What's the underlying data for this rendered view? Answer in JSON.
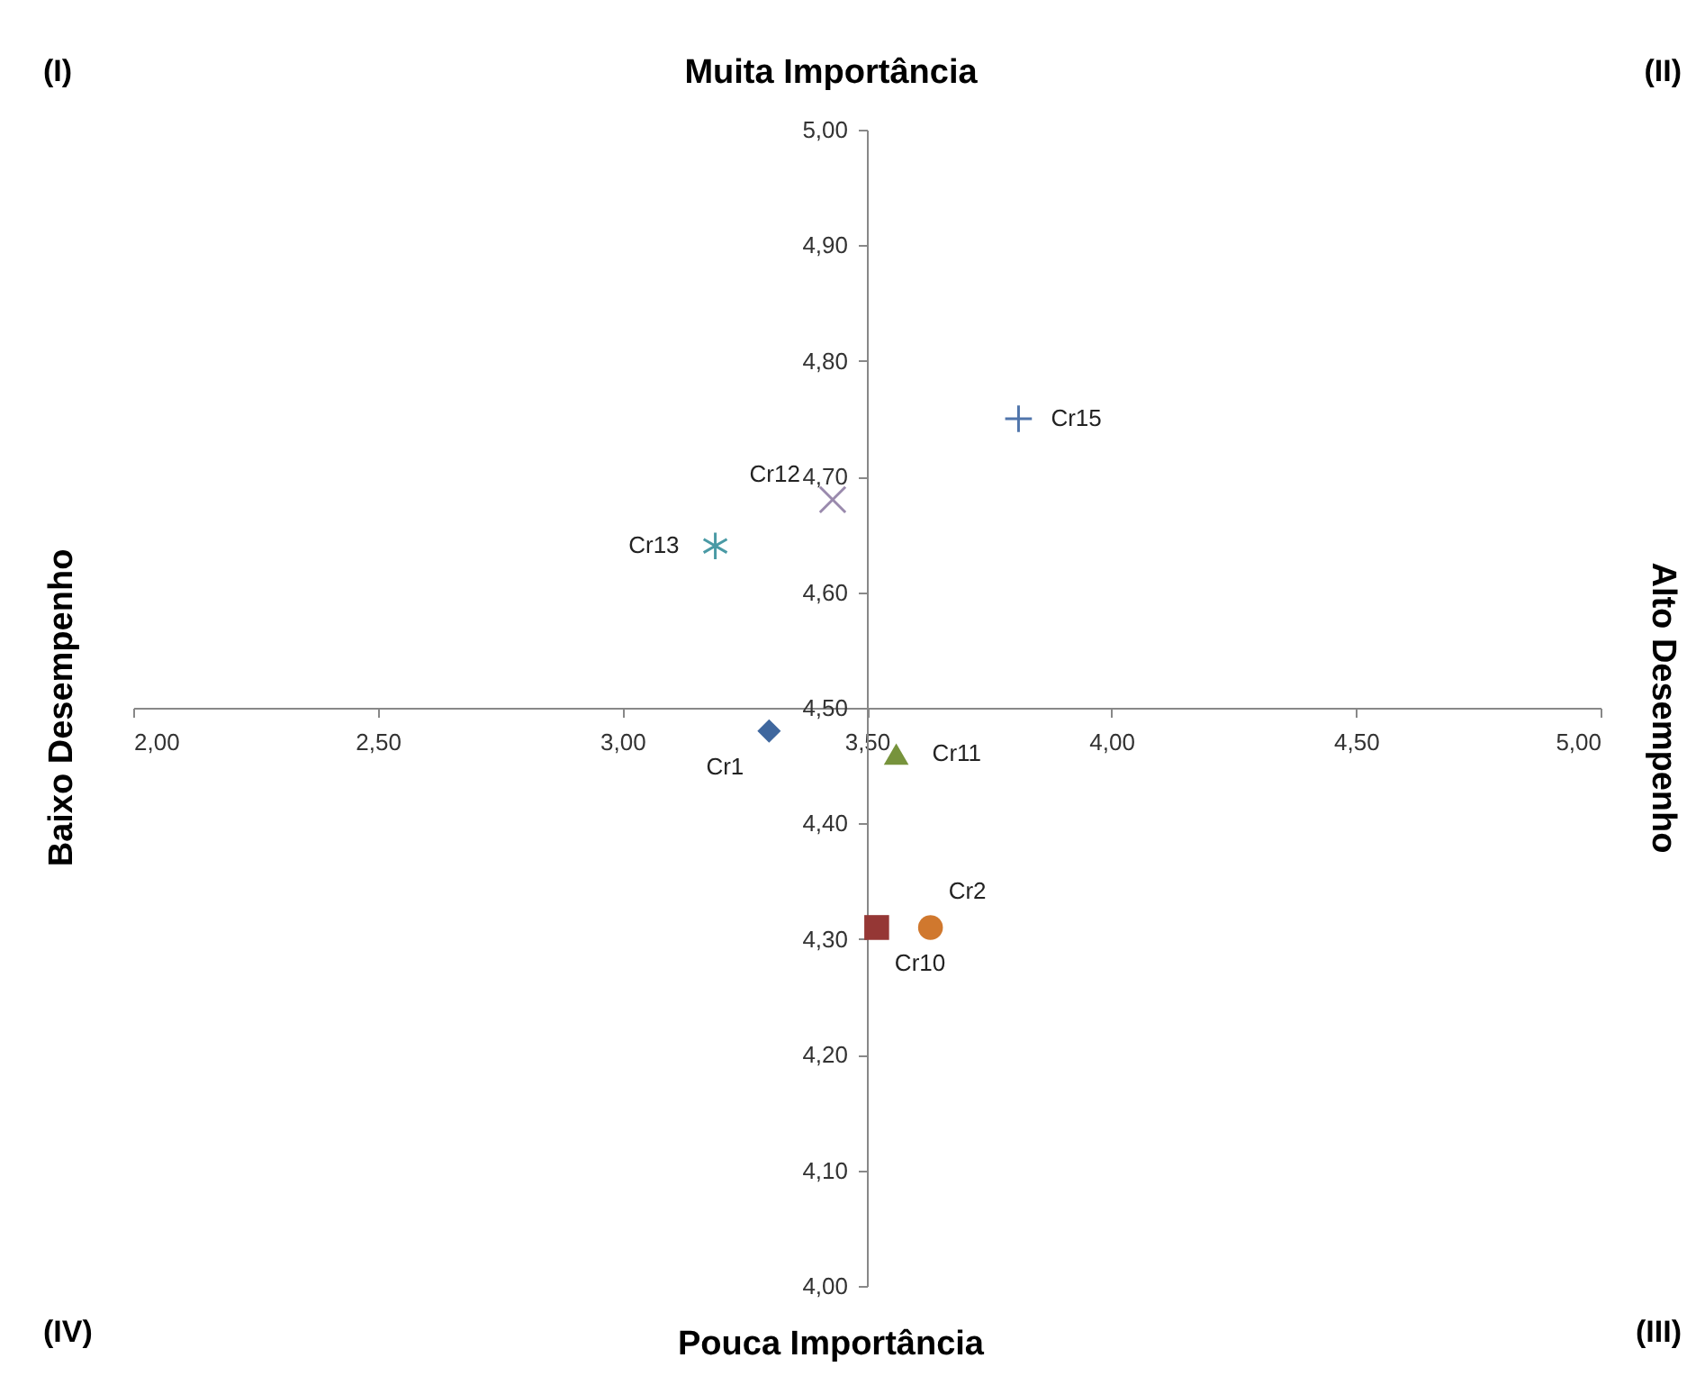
{
  "chart_data": {
    "type": "scatter",
    "annotations": [
      "(I)",
      "Muita Importância",
      "(II)",
      "Baixo Desempenho",
      "Alto Desempenho",
      "(IV)",
      "Pouca Importância",
      "(III)"
    ],
    "xlim": [
      2.0,
      5.0
    ],
    "xticks": [
      {
        "value": 2.0,
        "label": "2,00"
      },
      {
        "value": 2.5,
        "label": "2,50"
      },
      {
        "value": 3.0,
        "label": "3,00"
      },
      {
        "value": 3.5,
        "label": "3,50"
      },
      {
        "value": 4.0,
        "label": "4,00"
      },
      {
        "value": 4.5,
        "label": "4,50"
      },
      {
        "value": 5.0,
        "label": "5,00"
      }
    ],
    "ylim": [
      4.0,
      5.0
    ],
    "yticks": [
      {
        "value": 4.0,
        "label": "4,00"
      },
      {
        "value": 4.1,
        "label": "4,10"
      },
      {
        "value": 4.2,
        "label": "4,20"
      },
      {
        "value": 4.3,
        "label": "4,30"
      },
      {
        "value": 4.4,
        "label": "4,40"
      },
      {
        "value": 4.5,
        "label": "4,50"
      },
      {
        "value": 4.6,
        "label": "4,60"
      },
      {
        "value": 4.7,
        "label": "4,70"
      },
      {
        "value": 4.8,
        "label": "4,80"
      },
      {
        "value": 4.9,
        "label": "4,90"
      },
      {
        "value": 5.0,
        "label": "5,00"
      }
    ],
    "grid": false,
    "series": [
      {
        "name": "Cr15",
        "color": "#5075ab",
        "marker": "plus",
        "x": [
          3.81
        ],
        "values": [
          4.75
        ]
      },
      {
        "name": "Cr12",
        "color": "#9a8aad",
        "marker": "x",
        "x": [
          3.43
        ],
        "values": [
          4.68
        ]
      },
      {
        "name": "Cr13",
        "color": "#4a9aa5",
        "marker": "cross",
        "x": [
          3.19
        ],
        "values": [
          4.64
        ]
      },
      {
        "name": "Cr1",
        "color": "#3f679e",
        "marker": "diamond",
        "x": [
          3.3
        ],
        "values": [
          4.48
        ]
      },
      {
        "name": "Cr11",
        "color": "#77933c",
        "marker": "triangle",
        "x": [
          3.56
        ],
        "values": [
          4.46
        ]
      },
      {
        "name": "Cr10",
        "color": "#953735",
        "marker": "square",
        "x": [
          3.52
        ],
        "values": [
          4.31
        ]
      },
      {
        "name": "Cr2",
        "color": "#d0782e",
        "marker": "circle",
        "x": [
          3.63
        ],
        "values": [
          4.31
        ]
      }
    ]
  }
}
